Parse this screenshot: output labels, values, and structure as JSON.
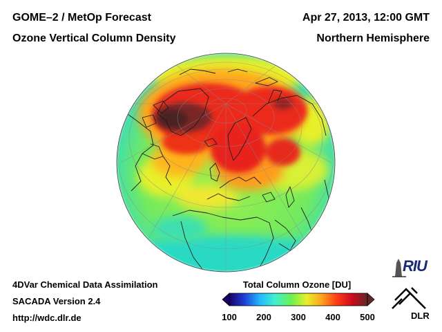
{
  "header": {
    "title_line1": "GOME–2 / MetOp Forecast",
    "title_line2": "Ozone Vertical Column Density",
    "date_line": "Apr 27, 2013, 12:00 GMT",
    "region_line": "Northern Hemisphere"
  },
  "footer": {
    "line1": "4DVar Chemical Data Assimilation",
    "line2": "SACADA Version 2.4",
    "line3": "http://wdc.dlr.de"
  },
  "colorbar": {
    "title": "Total Column Ozone [DU]",
    "ticks": [
      "100",
      "200",
      "300",
      "400",
      "500"
    ],
    "colors": [
      "#1a0066",
      "#1f3fd6",
      "#22b8ff",
      "#3ef0d0",
      "#6cf050",
      "#e6f028",
      "#ffa21e",
      "#ff3a14",
      "#cc0a1e",
      "#602828"
    ]
  },
  "map": {
    "projection": "orthographic",
    "hemisphere": "northern",
    "colors": {
      "low": "#2cd9c4",
      "mid": "#78ec5a",
      "yellow": "#e8f02c",
      "orange": "#ffa41c",
      "high": "#ec2a1a",
      "max": "#5a2222"
    }
  },
  "logos": {
    "riu_text": "RIU",
    "dlr_text": "DLR"
  }
}
